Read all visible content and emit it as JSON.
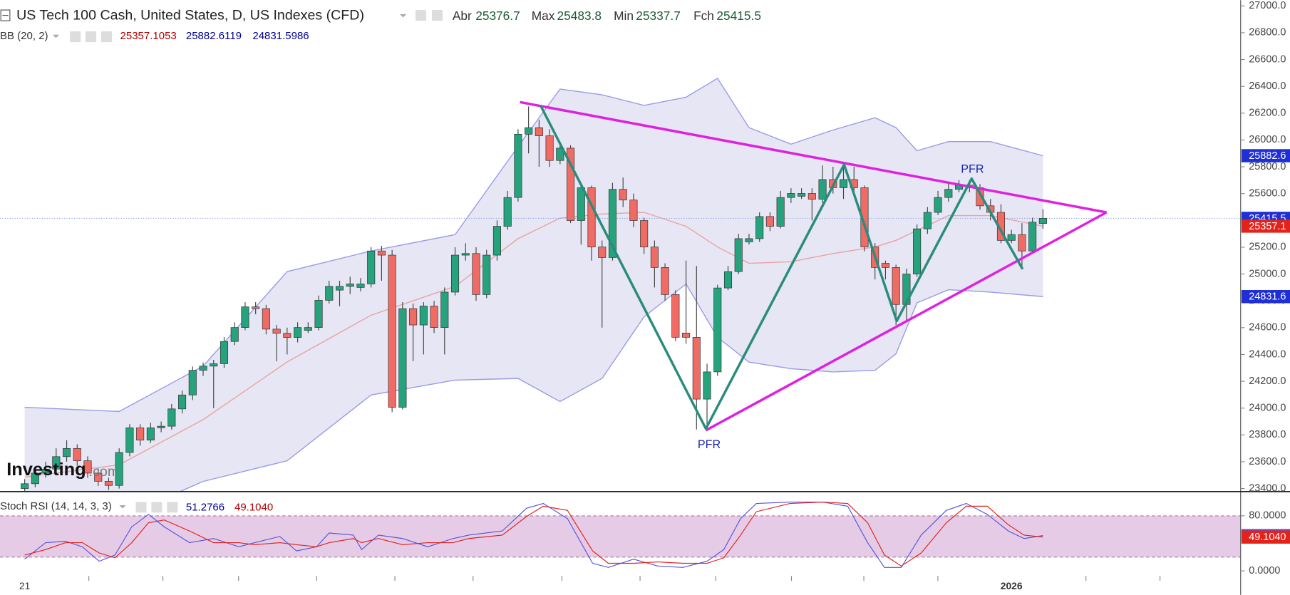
{
  "header": {
    "title": "US Tech 100 Cash, United States, D, US Indexes (CFD)",
    "ohlc_labels": [
      "Abr",
      "Max",
      "Min",
      "Fch"
    ]
  },
  "chart_data": [
    {
      "type": "candlestick",
      "categories": [
        "21",
        null,
        null,
        null,
        null,
        null,
        null,
        null,
        null,
        null,
        null,
        null,
        null,
        null,
        null,
        null,
        null,
        null,
        null,
        null,
        null,
        null,
        null,
        null,
        null,
        null,
        null,
        null,
        null,
        null,
        null,
        null,
        null,
        null,
        null,
        null,
        null,
        null,
        null,
        null,
        null,
        null,
        null,
        null,
        null,
        null,
        null,
        null,
        null,
        null,
        null,
        null,
        null,
        null,
        null,
        null,
        null,
        null,
        null,
        null,
        null,
        null,
        null,
        null,
        null,
        null,
        null,
        null,
        null,
        null,
        null,
        null,
        null,
        null,
        null,
        null,
        null,
        null,
        null,
        null,
        null,
        null,
        null,
        null,
        null,
        null,
        null,
        null,
        null,
        null,
        null,
        null,
        null,
        null,
        "2026",
        null,
        null,
        null
      ],
      "open": [
        23400,
        23436,
        23515,
        23545,
        23638,
        23699,
        23607,
        23515,
        23454,
        23423,
        23669,
        23853,
        23761,
        23853,
        23865,
        23994,
        24098,
        24282,
        24313,
        24331,
        24497,
        24601,
        24755,
        24742,
        24589,
        24558,
        24527,
        24580,
        24601,
        24804,
        24880,
        24908,
        24900,
        24926,
        25172,
        25141,
        24006,
        24742,
        24620,
        24761,
        24601,
        24865,
        25141,
        25153,
        24847,
        25141,
        25356,
        25571,
        26043,
        26092,
        26031,
        25847,
        25939,
        25399,
        25644,
        25202,
        25123,
        25632,
        25552,
        25399,
        25202,
        25049,
        24847,
        24560,
        24528,
        24067,
        24270,
        24896,
        25018,
        25240,
        25264,
        25429,
        25356,
        25571,
        25580,
        25601,
        25558,
        25705,
        25644,
        25705,
        25644,
        25202,
        25080,
        25049,
        24773,
        25000,
        25337,
        25460,
        25571,
        25632,
        25663,
        25644,
        25509,
        25460,
        25251,
        25294,
        25172,
        25376.7
      ],
      "high": [
        23470,
        23560,
        23600,
        23700,
        23760,
        23730,
        23640,
        23550,
        23480,
        23700,
        23880,
        23880,
        23890,
        23900,
        24030,
        24130,
        24310,
        24340,
        24360,
        24530,
        24640,
        24790,
        24790,
        24770,
        24620,
        24600,
        24640,
        24640,
        24840,
        24950,
        24950,
        24980,
        24970,
        25200,
        25210,
        25180,
        24790,
        24780,
        24790,
        24800,
        24900,
        25200,
        25230,
        25200,
        25180,
        25400,
        25620,
        26080,
        26250,
        26150,
        26080,
        25980,
        25960,
        25680,
        25660,
        25250,
        25680,
        25720,
        25600,
        25420,
        25250,
        25080,
        24880,
        25100,
        25060,
        24330,
        24920,
        25060,
        25300,
        25300,
        25460,
        25460,
        25620,
        25640,
        25640,
        25640,
        25810,
        25800,
        25810,
        25800,
        25660,
        25230,
        25100,
        25070,
        25040,
        25370,
        25500,
        25620,
        25680,
        25700,
        25700,
        25670,
        25560,
        25520,
        25330,
        25380,
        25420,
        25483.8
      ],
      "low": [
        23370,
        23410,
        23480,
        23510,
        23600,
        23570,
        23480,
        23420,
        23390,
        23400,
        23640,
        23720,
        23740,
        23820,
        23840,
        23960,
        24060,
        24240,
        24000,
        24300,
        24470,
        24580,
        24700,
        24550,
        24350,
        24400,
        24490,
        24560,
        24580,
        24780,
        24760,
        24850,
        24870,
        24900,
        24950,
        23970,
        23990,
        24350,
        24400,
        24560,
        24400,
        24840,
        25100,
        24800,
        24820,
        25100,
        25330,
        25540,
        25900,
        25800,
        25800,
        25820,
        25380,
        25220,
        25100,
        24600,
        25100,
        25500,
        25350,
        25150,
        24900,
        24800,
        24500,
        24480,
        23840,
        23880,
        24240,
        24880,
        25000,
        25220,
        25240,
        25320,
        25340,
        25530,
        25560,
        25400,
        25530,
        25600,
        25560,
        25600,
        25170,
        24960,
        24960,
        24620,
        24650,
        24980,
        25300,
        25440,
        25540,
        25610,
        25610,
        25480,
        25400,
        25230,
        25230,
        25050,
        25150,
        25337.7
      ],
      "close": [
        23436,
        23515,
        23545,
        23638,
        23699,
        23607,
        23515,
        23454,
        23423,
        23669,
        23853,
        23761,
        23853,
        23865,
        23994,
        24098,
        24282,
        24313,
        24331,
        24497,
        24601,
        24755,
        24742,
        24589,
        24558,
        24527,
        24601,
        24601,
        24804,
        24908,
        24908,
        24926,
        24926,
        25172,
        25141,
        24006,
        24742,
        24620,
        24761,
        24601,
        24865,
        25141,
        25153,
        24847,
        25141,
        25356,
        25571,
        26043,
        26092,
        26031,
        25847,
        25939,
        25399,
        25644,
        25202,
        25123,
        25632,
        25552,
        25399,
        25202,
        25049,
        24847,
        24528,
        24528,
        24067,
        24270,
        24896,
        25018,
        25264,
        25264,
        25429,
        25356,
        25571,
        25601,
        25601,
        25558,
        25705,
        25644,
        25705,
        25644,
        25202,
        25049,
        25049,
        24773,
        25000,
        25337,
        25460,
        25571,
        25632,
        25663,
        25644,
        25509,
        25460,
        25251,
        25294,
        25172,
        25387,
        25415.5
      ],
      "up_color": "#26a37c",
      "down_color": "#ef6b64",
      "ylim": [
        23380,
        27043
      ],
      "yticks": [
        {
          "value": 27000,
          "label": "27000.0"
        },
        {
          "value": 26800,
          "label": "26800.0"
        },
        {
          "value": 26600,
          "label": "26600.0"
        },
        {
          "value": 26400,
          "label": "26400.0"
        },
        {
          "value": 26200,
          "label": "26200.0"
        },
        {
          "value": 26000,
          "label": "26000.0"
        },
        {
          "value": 25800,
          "label": "25800.0"
        },
        {
          "value": 25600,
          "label": "25600.0"
        },
        {
          "value": 25400,
          "label": "25400.0"
        },
        {
          "value": 25200,
          "label": "25200.0"
        },
        {
          "value": 25000,
          "label": "25000.0"
        },
        {
          "value": 24800,
          "label": "24800.0"
        },
        {
          "value": 24600,
          "label": "24600.0"
        },
        {
          "value": 24400,
          "label": "24400.0"
        },
        {
          "value": 24200,
          "label": "24200.0"
        },
        {
          "value": 24000,
          "label": "24000.0"
        },
        {
          "value": 23800,
          "label": "23800.0"
        },
        {
          "value": 23600,
          "label": "23600.0"
        },
        {
          "value": 23400,
          "label": "23400.0"
        }
      ],
      "bollinger": {
        "name": "BB (20, 2)",
        "x": [
          1,
          10,
          18,
          26,
          34,
          42,
          48,
          52,
          56,
          60,
          64,
          67,
          70,
          74,
          78,
          82,
          84,
          86,
          89,
          93,
          98
        ],
        "middle": [
          23485,
          23577,
          23914,
          24344,
          24693,
          24908,
          25264,
          25417,
          25448,
          25460,
          25356,
          25202,
          25080,
          25092,
          25153,
          25202,
          25251,
          25325,
          25436,
          25436,
          25357.1053
        ],
        "upper": [
          24006,
          23975,
          24313,
          25018,
          25172,
          25294,
          25951,
          26380,
          26337,
          26258,
          26319,
          26460,
          26092,
          25969,
          26074,
          26166,
          26092,
          25920,
          25988,
          25988,
          25882.6119
        ],
        "lower": [
          22964,
          23179,
          23453,
          23607,
          24098,
          24209,
          24221,
          24049,
          24221,
          24681,
          24926,
          24528,
          24343,
          24294,
          24270,
          24282,
          24405,
          24785,
          24883,
          24865,
          24831.5986
        ],
        "colors": {
          "middle": "#b30000",
          "upper": "#000090",
          "lower": "#000090"
        }
      },
      "price_badges": [
        {
          "value": 25882.6,
          "color": "#1f2fd6"
        },
        {
          "value": 25415.5,
          "color": "#1f2fd6"
        },
        {
          "value": 25357.1,
          "color": "#e3221b"
        },
        {
          "value": 24831.6,
          "color": "#1f2fd6"
        }
      ],
      "annotations": [
        "PFR",
        "PFR"
      ],
      "watermark": [
        "Investing",
        ".com"
      ]
    },
    {
      "type": "line",
      "title": "Stoch RSI (14, 14, 3, 3)",
      "x": [
        1,
        3,
        4.9,
        6.5,
        8.1,
        9.6,
        11.2,
        12.8,
        14.3,
        16.7,
        19,
        21.4,
        22.9,
        25.3,
        26.9,
        28.8,
        30,
        32.3,
        33.1,
        34.7,
        37,
        39.4,
        41.8,
        43.3,
        46.5,
        48.8,
        50.4,
        52.7,
        55.1,
        56.6,
        59,
        61.3,
        63.7,
        66,
        67.6,
        69.2,
        70.7,
        73.9,
        77,
        79.4,
        81.3,
        82.9,
        84.5,
        86.4,
        88.8,
        90.7,
        92.7,
        94.7,
        96.2,
        98
      ],
      "series": [
        {
          "color": "#5555dd",
          "values": [
            17,
            41,
            43,
            35,
            14,
            23,
            64,
            82,
            64,
            41,
            47,
            35,
            41,
            50,
            29,
            35,
            55,
            52,
            31,
            52,
            47,
            35,
            47,
            52,
            58,
            91,
            98,
            76,
            11,
            5,
            17,
            7,
            5,
            14,
            31,
            76,
            98,
            100,
            100,
            94,
            41,
            5,
            5,
            52,
            88,
            98,
            82,
            58,
            47,
            51.2766
          ]
        },
        {
          "color": "#e3221b",
          "values": [
            23,
            31,
            41,
            41,
            26,
            19,
            41,
            70,
            74,
            58,
            41,
            41,
            38,
            41,
            38,
            35,
            41,
            47,
            41,
            47,
            38,
            41,
            41,
            47,
            52,
            79,
            94,
            88,
            29,
            11,
            11,
            13,
            11,
            11,
            19,
            52,
            86,
            98,
            100,
            98,
            70,
            23,
            7,
            26,
            70,
            94,
            94,
            67,
            52,
            49.104
          ]
        }
      ],
      "readout": [
        51.2766,
        {
          "value": 49.104,
          "label": "49.1040"
        }
      ],
      "ylim": [
        -31.3,
        114.6
      ],
      "yticks": [
        {
          "value": 80,
          "label": "80.0000"
        },
        {
          "value": 0,
          "label": "0.0000"
        }
      ],
      "band": [
        20,
        80
      ],
      "band_color": "#e6cbe6"
    }
  ]
}
